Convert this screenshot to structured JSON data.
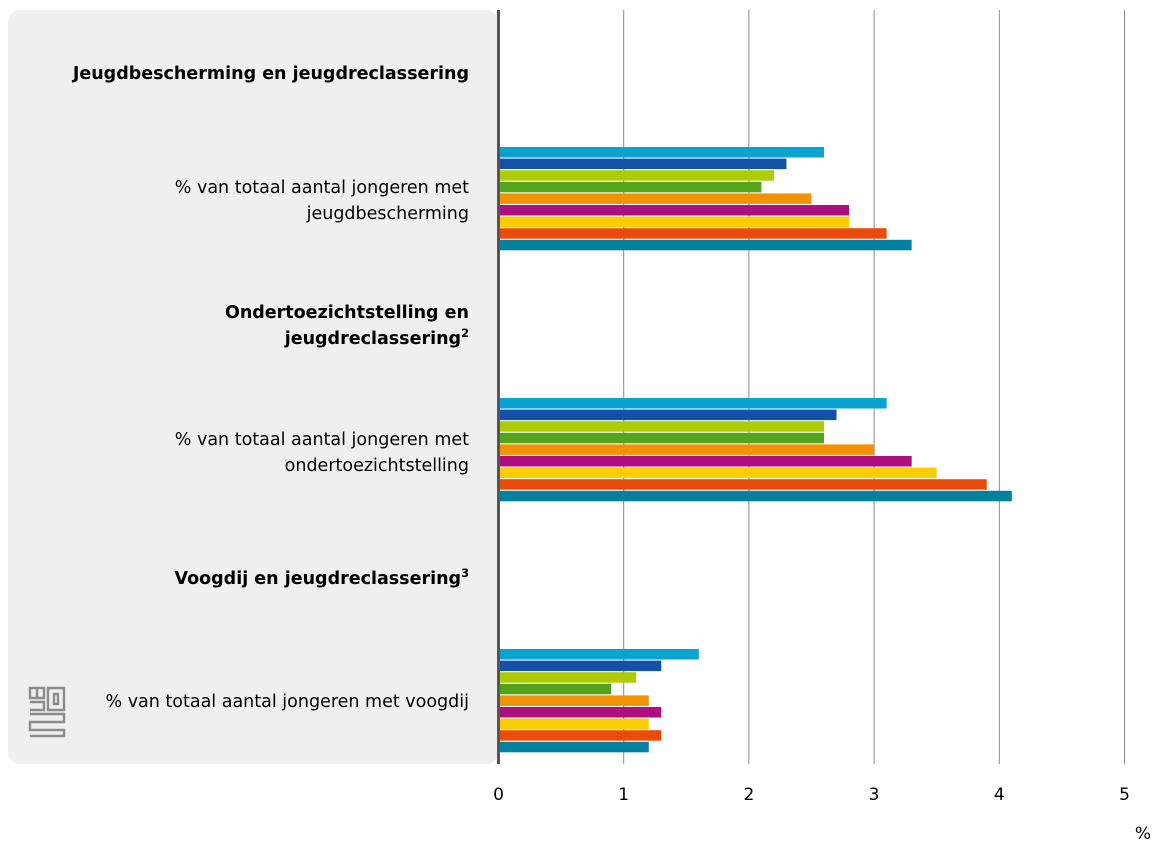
{
  "chart_data": {
    "type": "bar",
    "orientation": "horizontal",
    "unit": "%",
    "xlim": [
      0,
      5
    ],
    "x_ticks": [
      0,
      1,
      2,
      3,
      4,
      5
    ],
    "grid": true,
    "sections": [
      {
        "heading": "Jeugdbescherming en jeugdreclassering",
        "heading_sup": ""
      },
      {
        "heading": "Ondertoezichtstelling en jeugdreclassering",
        "heading_sup": "2"
      },
      {
        "heading": "Voogdij en jeugdreclassering",
        "heading_sup": "3"
      }
    ],
    "categories": [
      "% van totaal aantal jongeren met jeugdbescherming",
      "% van totaal aantal jongeren met ondertoezichtstelling",
      "% van totaal aantal jongeren met voogdij"
    ],
    "series": [
      {
        "color": "#0aa2cf",
        "values": [
          2.6,
          3.1,
          1.6
        ]
      },
      {
        "color": "#1350a8",
        "values": [
          2.3,
          2.7,
          1.3
        ]
      },
      {
        "color": "#afcb05",
        "values": [
          2.2,
          2.6,
          1.1
        ]
      },
      {
        "color": "#53a31d",
        "values": [
          2.1,
          2.6,
          0.9
        ]
      },
      {
        "color": "#f39200",
        "values": [
          2.5,
          3.0,
          1.2
        ]
      },
      {
        "color": "#af0e80",
        "values": [
          2.8,
          3.3,
          1.3
        ]
      },
      {
        "color": "#ffcc00",
        "values": [
          2.8,
          3.5,
          1.2
        ]
      },
      {
        "color": "#e94c0a",
        "values": [
          3.1,
          3.9,
          1.3
        ]
      },
      {
        "color": "#00819f",
        "values": [
          3.3,
          4.1,
          1.2
        ]
      }
    ]
  },
  "labels": {
    "heading_1": "Jeugdbescherming en jeugdreclassering",
    "row_1_line1": "% van totaal aantal jongeren met",
    "row_1_line2": "jeugdbescherming",
    "heading_2_line1": "Ondertoezichtstelling en",
    "heading_2_line2": "jeugdreclassering",
    "heading_2_sup": "2",
    "row_2_line1": "% van totaal aantal jongeren met",
    "row_2_line2": "ondertoezichtstelling",
    "heading_3": "Voogdij en jeugdreclassering",
    "heading_3_sup": "3",
    "row_3": "% van totaal aantal jongeren met voogdij",
    "unit": "%"
  },
  "logo": {
    "name": "cbs-logo-icon",
    "text": "cbs"
  }
}
